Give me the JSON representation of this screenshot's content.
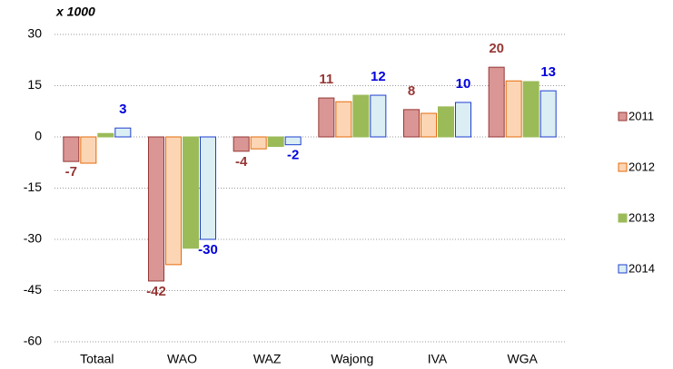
{
  "chart_data": {
    "type": "bar",
    "subtitle": "x 1000",
    "categories": [
      "Totaal",
      "WAO",
      "WAZ",
      "Wajong",
      "IVA",
      "WGA"
    ],
    "series": [
      {
        "name": "2011",
        "color": "#d99694",
        "stroke": "#953735",
        "label_color": "#953735",
        "values": [
          -7.2,
          -42.2,
          -4.2,
          11.4,
          8,
          20.4
        ],
        "value_labels": [
          "-7",
          "-42",
          "-4",
          "11",
          "8",
          "20"
        ]
      },
      {
        "name": "2012",
        "color": "#fcd5b5",
        "stroke": "#e46c0a",
        "values": [
          -7.7,
          -37.4,
          -3.5,
          10.3,
          6.9,
          16.4
        ]
      },
      {
        "name": "2013",
        "color": "#9bbb59",
        "stroke": "#9bbb59",
        "values": [
          1,
          -32.6,
          -2.8,
          12.2,
          8.8,
          16.2
        ]
      },
      {
        "name": "2014",
        "color": "#dbeef4",
        "stroke": "#1f3fd0",
        "label_color": "#0000dd",
        "values": [
          2.6,
          -30,
          -2.3,
          12.2,
          10.1,
          13.5
        ],
        "value_labels": [
          "3",
          "-30",
          "-2",
          "12",
          "10",
          "13"
        ]
      }
    ],
    "ylim": [
      -60,
      30
    ],
    "yticks": [
      -60,
      -45,
      -30,
      -15,
      0,
      15,
      30
    ],
    "grid": true,
    "legend": "right"
  }
}
